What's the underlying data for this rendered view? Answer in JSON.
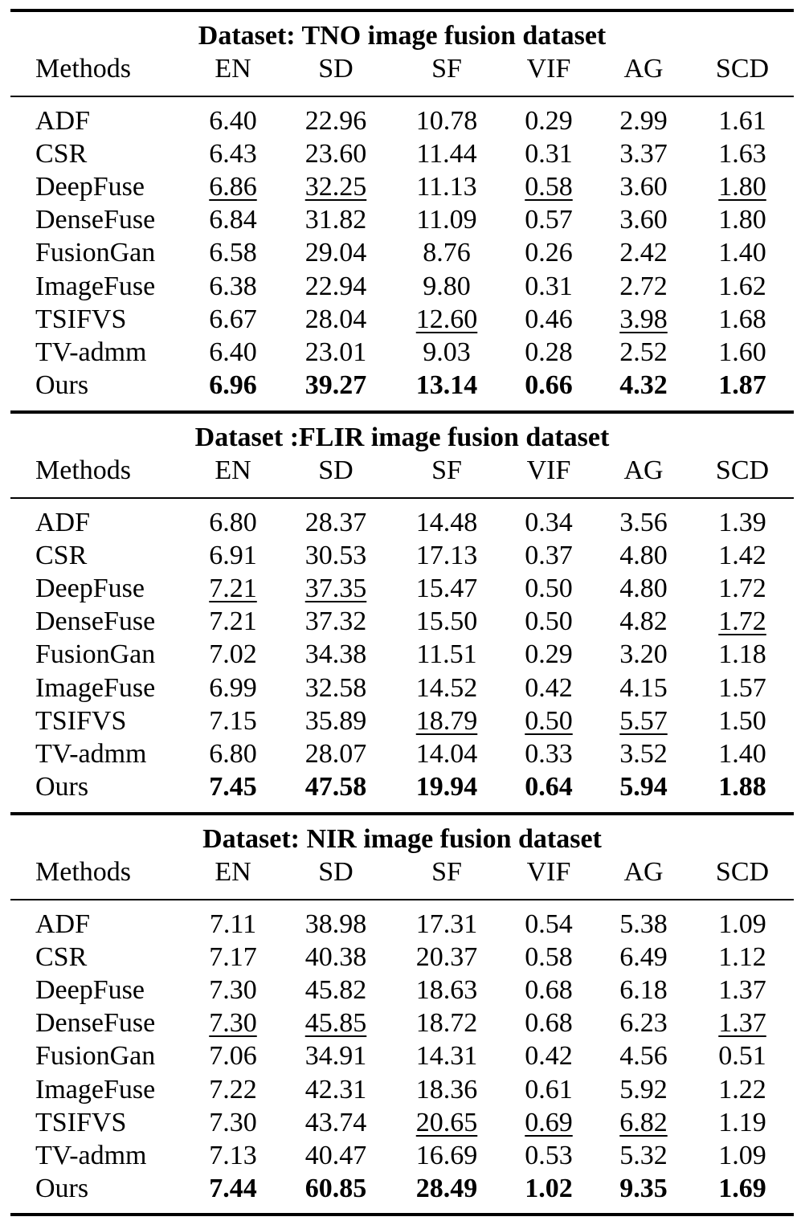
{
  "columns": [
    "Methods",
    "EN",
    "SD",
    "SF",
    "VIF",
    "AG",
    "SCD"
  ],
  "sections": [
    {
      "title": "Dataset: TNO image fusion dataset",
      "rows": [
        {
          "method": "ADF",
          "values": [
            "6.40",
            "22.96",
            "10.78",
            "0.29",
            "2.99",
            "1.61"
          ],
          "underline": []
        },
        {
          "method": "CSR",
          "values": [
            "6.43",
            "23.60",
            "11.44",
            "0.31",
            "3.37",
            "1.63"
          ],
          "underline": []
        },
        {
          "method": "DeepFuse",
          "values": [
            "6.86",
            "32.25",
            "11.13",
            "0.58",
            "3.60",
            "1.80"
          ],
          "underline": [
            0,
            1,
            3,
            5
          ]
        },
        {
          "method": "DenseFuse",
          "values": [
            "6.84",
            "31.82",
            "11.09",
            "0.57",
            "3.60",
            "1.80"
          ],
          "underline": []
        },
        {
          "method": "FusionGan",
          "values": [
            "6.58",
            "29.04",
            "8.76",
            "0.26",
            "2.42",
            "1.40"
          ],
          "underline": []
        },
        {
          "method": "ImageFuse",
          "values": [
            "6.38",
            "22.94",
            "9.80",
            "0.31",
            "2.72",
            "1.62"
          ],
          "underline": []
        },
        {
          "method": "TSIFVS",
          "values": [
            "6.67",
            "28.04",
            "12.60",
            "0.46",
            "3.98",
            "1.68"
          ],
          "underline": [
            2,
            4
          ]
        },
        {
          "method": "TV-admm",
          "values": [
            "6.40",
            "23.01",
            "9.03",
            "0.28",
            "2.52",
            "1.60"
          ],
          "underline": []
        },
        {
          "method": "Ours",
          "values": [
            "6.96",
            "39.27",
            "13.14",
            "0.66",
            "4.32",
            "1.87"
          ],
          "underline": [],
          "bold": true
        }
      ]
    },
    {
      "title": "Dataset :FLIR image fusion dataset",
      "rows": [
        {
          "method": "ADF",
          "values": [
            "6.80",
            "28.37",
            "14.48",
            "0.34",
            "3.56",
            "1.39"
          ],
          "underline": []
        },
        {
          "method": "CSR",
          "values": [
            "6.91",
            "30.53",
            "17.13",
            "0.37",
            "4.80",
            "1.42"
          ],
          "underline": []
        },
        {
          "method": "DeepFuse",
          "values": [
            "7.21",
            "37.35",
            "15.47",
            "0.50",
            "4.80",
            "1.72"
          ],
          "underline": [
            0,
            1
          ]
        },
        {
          "method": "DenseFuse",
          "values": [
            "7.21",
            "37.32",
            "15.50",
            "0.50",
            "4.82",
            "1.72"
          ],
          "underline": [
            5
          ]
        },
        {
          "method": "FusionGan",
          "values": [
            "7.02",
            "34.38",
            "11.51",
            "0.29",
            "3.20",
            "1.18"
          ],
          "underline": []
        },
        {
          "method": "ImageFuse",
          "values": [
            "6.99",
            "32.58",
            "14.52",
            "0.42",
            "4.15",
            "1.57"
          ],
          "underline": []
        },
        {
          "method": "TSIFVS",
          "values": [
            "7.15",
            "35.89",
            "18.79",
            "0.50",
            "5.57",
            "1.50"
          ],
          "underline": [
            2,
            3,
            4
          ]
        },
        {
          "method": "TV-admm",
          "values": [
            "6.80",
            "28.07",
            "14.04",
            "0.33",
            "3.52",
            "1.40"
          ],
          "underline": []
        },
        {
          "method": "Ours",
          "values": [
            "7.45",
            "47.58",
            "19.94",
            "0.64",
            "5.94",
            "1.88"
          ],
          "underline": [],
          "bold": true
        }
      ]
    },
    {
      "title": "Dataset: NIR image fusion dataset",
      "rows": [
        {
          "method": "ADF",
          "values": [
            "7.11",
            "38.98",
            "17.31",
            "0.54",
            "5.38",
            "1.09"
          ],
          "underline": []
        },
        {
          "method": "CSR",
          "values": [
            "7.17",
            "40.38",
            "20.37",
            "0.58",
            "6.49",
            "1.12"
          ],
          "underline": []
        },
        {
          "method": "DeepFuse",
          "values": [
            "7.30",
            "45.82",
            "18.63",
            "0.68",
            "6.18",
            "1.37"
          ],
          "underline": []
        },
        {
          "method": "DenseFuse",
          "values": [
            "7.30",
            "45.85",
            "18.72",
            "0.68",
            "6.23",
            "1.37"
          ],
          "underline": [
            0,
            1,
            5
          ]
        },
        {
          "method": "FusionGan",
          "values": [
            "7.06",
            "34.91",
            "14.31",
            "0.42",
            "4.56",
            "0.51"
          ],
          "underline": []
        },
        {
          "method": "ImageFuse",
          "values": [
            "7.22",
            "42.31",
            "18.36",
            "0.61",
            "5.92",
            "1.22"
          ],
          "underline": []
        },
        {
          "method": "TSIFVS",
          "values": [
            "7.30",
            "43.74",
            "20.65",
            "0.69",
            "6.82",
            "1.19"
          ],
          "underline": [
            2,
            3,
            4
          ]
        },
        {
          "method": "TV-admm",
          "values": [
            "7.13",
            "40.47",
            "16.69",
            "0.53",
            "5.32",
            "1.09"
          ],
          "underline": []
        },
        {
          "method": "Ours",
          "values": [
            "7.44",
            "60.85",
            "28.49",
            "1.02",
            "9.35",
            "1.69"
          ],
          "underline": [],
          "bold": true
        }
      ]
    }
  ]
}
